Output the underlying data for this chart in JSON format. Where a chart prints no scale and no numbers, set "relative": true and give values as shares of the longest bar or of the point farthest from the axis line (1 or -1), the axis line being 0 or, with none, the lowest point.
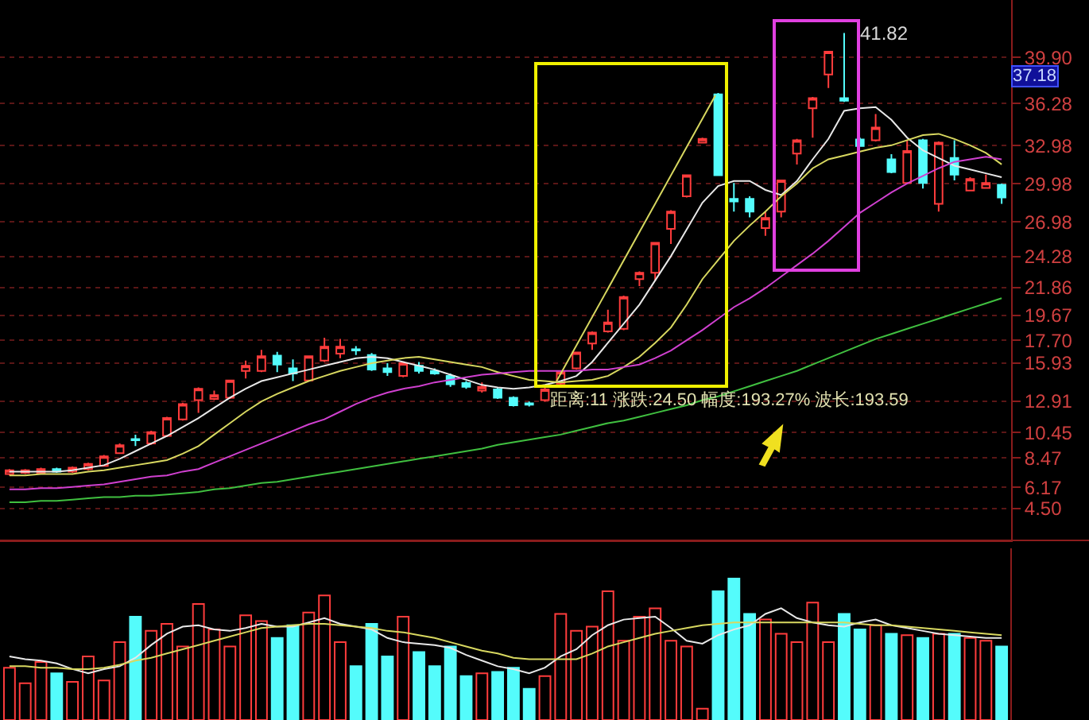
{
  "chart_data": [
    {
      "type": "candlestick",
      "categories": [
        null,
        null,
        null,
        null,
        null,
        null,
        null,
        null,
        null,
        null,
        null,
        null,
        null,
        null,
        null,
        null,
        null,
        null,
        null,
        null,
        null,
        null,
        null,
        null,
        null,
        null,
        null,
        null,
        null,
        null,
        null,
        null,
        null,
        null,
        null,
        null,
        null,
        null,
        null,
        null,
        null,
        null,
        null,
        null,
        null,
        null,
        null,
        null,
        null,
        null,
        null,
        null,
        null,
        null,
        null,
        null,
        null,
        null,
        null,
        null,
        null,
        null,
        null,
        null
      ],
      "ohlc": [
        [
          7.2,
          7.6,
          7.1,
          7.5
        ],
        [
          7.3,
          7.6,
          7.2,
          7.5
        ],
        [
          7.3,
          7.7,
          7.2,
          7.6
        ],
        [
          7.6,
          7.7,
          7.3,
          7.4
        ],
        [
          7.4,
          7.8,
          7.3,
          7.7
        ],
        [
          7.6,
          8.1,
          7.5,
          8.0
        ],
        [
          7.85,
          8.7,
          7.8,
          8.6
        ],
        [
          8.85,
          9.6,
          8.8,
          9.47
        ],
        [
          9.95,
          10.3,
          9.4,
          9.85
        ],
        [
          9.6,
          10.6,
          9.5,
          10.5
        ],
        [
          10.2,
          11.7,
          10.1,
          11.6
        ],
        [
          11.5,
          12.8,
          11.4,
          12.7
        ],
        [
          13.0,
          14.0,
          12.0,
          13.9
        ],
        [
          13.1,
          13.75,
          13.0,
          13.4
        ],
        [
          13.2,
          14.6,
          13.1,
          14.55
        ],
        [
          15.3,
          16.1,
          14.7,
          15.7
        ],
        [
          15.3,
          16.95,
          15.2,
          16.45
        ],
        [
          16.5,
          16.8,
          15.2,
          15.8
        ],
        [
          15.5,
          16.2,
          14.5,
          15.1
        ],
        [
          14.55,
          16.5,
          14.5,
          16.45
        ],
        [
          16.1,
          17.9,
          16.0,
          17.2
        ],
        [
          16.65,
          17.8,
          16.3,
          17.2
        ],
        [
          17.0,
          17.25,
          16.55,
          16.9
        ],
        [
          16.55,
          16.7,
          15.3,
          15.4
        ],
        [
          15.5,
          15.9,
          14.9,
          15.2
        ],
        [
          14.9,
          16.0,
          14.8,
          15.9
        ],
        [
          15.7,
          16.0,
          15.1,
          15.3
        ],
        [
          15.3,
          15.5,
          15.0,
          15.1
        ],
        [
          14.9,
          15.1,
          14.05,
          14.25
        ],
        [
          14.35,
          14.5,
          13.9,
          14.05
        ],
        [
          13.75,
          14.4,
          13.6,
          14.05
        ],
        [
          13.85,
          14.0,
          13.1,
          13.2
        ],
        [
          13.2,
          13.3,
          12.5,
          12.6
        ],
        [
          12.75,
          12.9,
          12.5,
          12.65
        ],
        [
          13.0,
          14.0,
          12.9,
          13.85
        ],
        [
          14.3,
          15.3,
          14.1,
          15.2
        ],
        [
          15.5,
          16.8,
          15.4,
          16.75
        ],
        [
          17.45,
          18.4,
          16.95,
          18.3
        ],
        [
          18.4,
          20.1,
          18.3,
          19.1
        ],
        [
          18.6,
          21.2,
          18.5,
          21.1
        ],
        [
          22.5,
          23.1,
          21.95,
          23.0
        ],
        [
          23.0,
          25.4,
          22.35,
          25.35
        ],
        [
          26.45,
          27.9,
          25.25,
          27.8
        ],
        [
          29.0,
          30.7,
          28.9,
          30.65
        ],
        [
          33.2,
          33.6,
          33.2,
          33.5
        ],
        [
          37.0,
          37.1,
          30.6,
          30.65
        ],
        [
          28.8,
          30.05,
          27.8,
          28.6
        ],
        [
          28.8,
          29.0,
          27.35,
          27.8
        ],
        [
          26.5,
          27.8,
          25.9,
          27.3
        ],
        [
          27.8,
          30.3,
          27.35,
          30.25
        ],
        [
          32.35,
          33.5,
          31.5,
          33.4
        ],
        [
          35.9,
          36.8,
          33.6,
          36.7
        ],
        [
          38.55,
          40.4,
          37.5,
          40.35
        ],
        [
          36.7,
          41.82,
          36.4,
          36.5
        ],
        [
          33.45,
          33.6,
          32.9,
          32.95
        ],
        [
          33.4,
          35.45,
          33.3,
          34.4
        ],
        [
          31.9,
          32.3,
          30.8,
          30.9
        ],
        [
          30.05,
          33.4,
          30.0,
          32.55
        ],
        [
          33.4,
          33.5,
          29.6,
          30.05
        ],
        [
          28.4,
          33.3,
          27.8,
          33.2
        ],
        [
          32.0,
          33.4,
          30.25,
          30.7
        ],
        [
          29.45,
          30.5,
          29.4,
          30.35
        ],
        [
          29.65,
          30.7,
          29.6,
          30.05
        ],
        [
          29.9,
          30.0,
          28.4,
          28.9
        ]
      ],
      "colors": [
        "#ff3c3c",
        "#ff3c3c",
        "#ff3c3c",
        "#54fcfc",
        "#ff3c3c",
        "#ff3c3c",
        "#ff3c3c",
        "#ff3c3c",
        "#54fcfc",
        "#ff3c3c",
        "#ff3c3c",
        "#ff3c3c",
        "#ff3c3c",
        "#ff3c3c",
        "#ff3c3c",
        "#ff3c3c",
        "#ff3c3c",
        "#54fcfc",
        "#54fcfc",
        "#ff3c3c",
        "#ff3c3c",
        "#ff3c3c",
        "#54fcfc",
        "#54fcfc",
        "#54fcfc",
        "#ff3c3c",
        "#54fcfc",
        "#54fcfc",
        "#54fcfc",
        "#54fcfc",
        "#ff3c3c",
        "#54fcfc",
        "#54fcfc",
        "#54fcfc",
        "#ff3c3c",
        "#ff3c3c",
        "#ff3c3c",
        "#ff3c3c",
        "#ff3c3c",
        "#ff3c3c",
        "#ff3c3c",
        "#ff3c3c",
        "#ff3c3c",
        "#ff3c3c",
        "#ff3c3c",
        "#54fcfc",
        "#54fcfc",
        "#54fcfc",
        "#ff3c3c",
        "#ff3c3c",
        "#ff3c3c",
        "#ff3c3c",
        "#ff3c3c",
        "#54fcfc",
        "#54fcfc",
        "#ff3c3c",
        "#54fcfc",
        "#ff3c3c",
        "#54fcfc",
        "#ff3c3c",
        "#54fcfc",
        "#ff3c3c",
        "#ff3c3c",
        "#54fcfc"
      ],
      "series": [
        {
          "type": "line",
          "color": "#e8e8e8",
          "values": [
            7.4,
            7.4,
            7.4,
            7.4,
            7.5,
            7.7,
            7.9,
            8.4,
            9.0,
            9.6,
            10.2,
            10.9,
            11.6,
            12.4,
            13.2,
            13.9,
            14.5,
            14.8,
            15.1,
            15.4,
            15.7,
            16.0,
            16.3,
            16.4,
            16.3,
            16.0,
            15.7,
            15.4,
            15.0,
            14.6,
            14.2,
            14.0,
            13.9,
            14.0,
            14.2,
            14.5,
            14.9,
            16.0,
            17.5,
            19.0,
            20.5,
            22.4,
            24.3,
            26.4,
            28.5,
            29.8,
            30.2,
            30.2,
            29.5,
            29.1,
            30.2,
            31.9,
            33.5,
            35.7,
            35.9,
            36.0,
            35.0,
            33.6,
            32.6,
            32.0,
            31.4,
            31.1,
            30.8,
            30.5
          ]
        },
        {
          "type": "line",
          "color": "#d8d860",
          "values": [
            7.1,
            7.1,
            7.2,
            7.2,
            7.2,
            7.4,
            7.5,
            7.7,
            7.9,
            8.1,
            8.3,
            8.8,
            9.4,
            10.3,
            11.2,
            12.1,
            12.9,
            13.5,
            14.0,
            14.5,
            14.9,
            15.3,
            15.6,
            15.9,
            16.1,
            16.3,
            16.4,
            16.2,
            16.0,
            15.8,
            15.6,
            15.2,
            14.9,
            14.6,
            14.5,
            14.4,
            14.5,
            14.6,
            14.9,
            15.6,
            16.4,
            17.5,
            18.7,
            20.5,
            22.5,
            24.0,
            25.5,
            26.7,
            27.8,
            29.0,
            30.0,
            31.2,
            31.9,
            32.2,
            32.5,
            32.8,
            33.0,
            33.4,
            33.8,
            33.9,
            33.5,
            33.0,
            32.4,
            31.5
          ]
        },
        {
          "type": "line",
          "color": "#d040d0",
          "values": [
            6.0,
            6.0,
            6.1,
            6.1,
            6.2,
            6.3,
            6.4,
            6.6,
            6.8,
            7.0,
            7.1,
            7.4,
            7.6,
            8.1,
            8.6,
            9.1,
            9.6,
            10.1,
            10.6,
            11.1,
            11.5,
            12.1,
            12.7,
            13.2,
            13.6,
            13.9,
            14.1,
            14.4,
            14.6,
            14.8,
            15.0,
            15.1,
            15.2,
            15.3,
            15.3,
            15.3,
            15.3,
            15.4,
            15.4,
            15.6,
            15.8,
            16.3,
            16.9,
            17.7,
            18.5,
            19.4,
            20.3,
            21.0,
            21.8,
            22.7,
            23.6,
            24.5,
            25.5,
            26.6,
            27.7,
            28.5,
            29.3,
            30.0,
            30.6,
            31.2,
            31.7,
            31.9,
            32.1,
            31.9
          ]
        },
        {
          "type": "line",
          "color": "#40c040",
          "values": [
            5.0,
            5.0,
            5.1,
            5.1,
            5.2,
            5.3,
            5.4,
            5.4,
            5.5,
            5.5,
            5.6,
            5.7,
            5.8,
            6.0,
            6.1,
            6.3,
            6.5,
            6.6,
            6.8,
            7.0,
            7.2,
            7.4,
            7.6,
            7.8,
            8.0,
            8.2,
            8.4,
            8.6,
            8.8,
            9.0,
            9.2,
            9.5,
            9.7,
            9.9,
            10.1,
            10.3,
            10.6,
            10.9,
            11.2,
            11.4,
            11.7,
            12.0,
            12.3,
            12.6,
            13.0,
            13.3,
            13.7,
            14.1,
            14.5,
            14.9,
            15.3,
            15.8,
            16.3,
            16.8,
            17.3,
            17.8,
            18.2,
            18.6,
            19.0,
            19.4,
            19.8,
            20.2,
            20.6,
            21.0
          ]
        }
      ],
      "ylim": [
        2.0,
        44.4
      ],
      "yticks": [
        {
          "value": 39.9,
          "label": "39.90"
        },
        36.28,
        32.98,
        29.98,
        26.98,
        24.28,
        21.86,
        19.67,
        {
          "value": 17.7,
          "label": "17.70"
        },
        15.93,
        12.91,
        10.45,
        8.47,
        6.17,
        {
          "value": 4.5,
          "label": "4.50"
        }
      ],
      "grid": "y",
      "tick_labels": "y",
      "annotations": [
        "距离:11 涨跌:24.50 幅度:193.27% 波长:193.59",
        "41.82",
        "37.18"
      ]
    },
    {
      "type": "bar",
      "relative": true,
      "tick_labels": false,
      "categories": [
        null,
        null,
        null,
        null,
        null,
        null,
        null,
        null,
        null,
        null,
        null,
        null,
        null,
        null,
        null,
        null,
        null,
        null,
        null,
        null,
        null,
        null,
        null,
        null,
        null,
        null,
        null,
        null,
        null,
        null,
        null,
        null,
        null,
        null,
        null,
        null,
        null,
        null,
        null,
        null,
        null,
        null,
        null,
        null,
        null,
        null,
        null,
        null,
        null,
        null,
        null,
        null,
        null,
        null,
        null,
        null,
        null,
        null,
        null,
        null,
        null,
        null,
        null,
        null
      ],
      "series": [
        {
          "type": "bar",
          "values": [
            0.37,
            0.26,
            0.41,
            0.33,
            0.27,
            0.45,
            0.28,
            0.55,
            0.73,
            0.63,
            0.68,
            0.52,
            0.82,
            0.64,
            0.52,
            0.74,
            0.7,
            0.58,
            0.67,
            0.76,
            0.88,
            0.55,
            0.38,
            0.68,
            0.45,
            0.73,
            0.48,
            0.38,
            0.52,
            0.31,
            0.33,
            0.34,
            0.37,
            0.22,
            0.31,
            0.75,
            0.63,
            0.66,
            0.91,
            0.56,
            0.73,
            0.79,
            0.56,
            0.52,
            0.08,
            0.91,
            1,
            0.75,
            0.71,
            0.61,
            0.55,
            0.83,
            0.55,
            0.75,
            0.64,
            0.67,
            0.61,
            0.6,
            0.58,
            0.61,
            0.61,
            0.58,
            0.56,
            0.52
          ],
          "colors": [
            "#ff3c3c",
            "#ff3c3c",
            "#ff3c3c",
            "#54fcfc",
            "#ff3c3c",
            "#ff3c3c",
            "#ff3c3c",
            "#ff3c3c",
            "#54fcfc",
            "#ff3c3c",
            "#ff3c3c",
            "#ff3c3c",
            "#ff3c3c",
            "#ff3c3c",
            "#ff3c3c",
            "#ff3c3c",
            "#ff3c3c",
            "#54fcfc",
            "#54fcfc",
            "#ff3c3c",
            "#ff3c3c",
            "#ff3c3c",
            "#54fcfc",
            "#54fcfc",
            "#54fcfc",
            "#ff3c3c",
            "#54fcfc",
            "#54fcfc",
            "#54fcfc",
            "#54fcfc",
            "#ff3c3c",
            "#54fcfc",
            "#54fcfc",
            "#54fcfc",
            "#ff3c3c",
            "#ff3c3c",
            "#ff3c3c",
            "#ff3c3c",
            "#ff3c3c",
            "#ff3c3c",
            "#ff3c3c",
            "#ff3c3c",
            "#ff3c3c",
            "#ff3c3c",
            "#ff3c3c",
            "#54fcfc",
            "#54fcfc",
            "#54fcfc",
            "#ff3c3c",
            "#ff3c3c",
            "#ff3c3c",
            "#ff3c3c",
            "#ff3c3c",
            "#54fcfc",
            "#54fcfc",
            "#ff3c3c",
            "#54fcfc",
            "#ff3c3c",
            "#54fcfc",
            "#ff3c3c",
            "#54fcfc",
            "#ff3c3c",
            "#ff3c3c",
            "#54fcfc"
          ]
        },
        {
          "type": "line",
          "color": "#e8e8e8",
          "values": [
            0.45,
            0.43,
            0.42,
            0.4,
            0.36,
            0.33,
            0.36,
            0.38,
            0.44,
            0.53,
            0.61,
            0.66,
            0.67,
            0.64,
            0.63,
            0.65,
            0.68,
            0.66,
            0.66,
            0.69,
            0.72,
            0.68,
            0.66,
            0.64,
            0.58,
            0.55,
            0.54,
            0.53,
            0.51,
            0.46,
            0.42,
            0.38,
            0.36,
            0.33,
            0.37,
            0.45,
            0.5,
            0.6,
            0.67,
            0.71,
            0.72,
            0.73,
            0.65,
            0.56,
            0.54,
            0.6,
            0.64,
            0.67,
            0.75,
            0.79,
            0.72,
            0.69,
            0.67,
            0.66,
            0.69,
            0.71,
            0.67,
            0.65,
            0.63,
            0.61,
            0.6,
            0.59,
            0.58,
            0.58
          ]
        },
        {
          "type": "line",
          "color": "#d8d860",
          "values": [
            0.38,
            0.38,
            0.37,
            0.37,
            0.36,
            0.36,
            0.37,
            0.39,
            0.42,
            0.44,
            0.47,
            0.5,
            0.53,
            0.56,
            0.59,
            0.62,
            0.65,
            0.66,
            0.67,
            0.68,
            0.68,
            0.67,
            0.66,
            0.65,
            0.63,
            0.62,
            0.6,
            0.58,
            0.55,
            0.52,
            0.49,
            0.47,
            0.44,
            0.43,
            0.43,
            0.43,
            0.43,
            0.47,
            0.52,
            0.55,
            0.58,
            0.61,
            0.63,
            0.65,
            0.67,
            0.68,
            0.69,
            0.69,
            0.69,
            0.69,
            0.69,
            0.69,
            0.69,
            0.69,
            0.68,
            0.67,
            0.67,
            0.66,
            0.65,
            0.64,
            0.63,
            0.62,
            0.61,
            0.6
          ]
        }
      ]
    }
  ]
}
